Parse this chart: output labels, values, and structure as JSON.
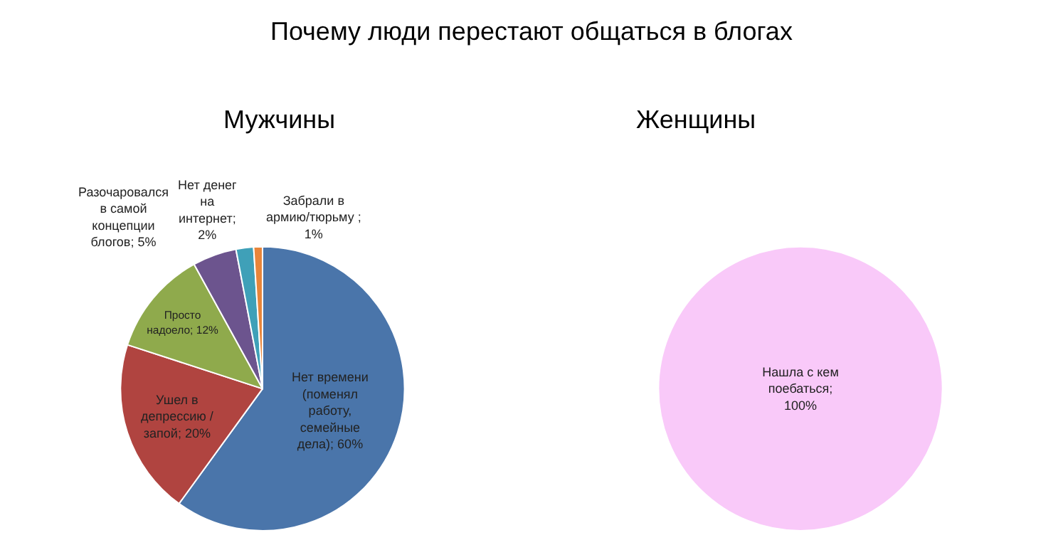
{
  "chart_data": [
    {
      "type": "pie",
      "title": "Мужчины",
      "annotations": [
        "Почему люди перестают общаться в блогах"
      ],
      "categories": [
        "Нет времени (поменял работу, семейные дела); 60%",
        "Ушел в депрессию / запой; 20%",
        "Просто надоело; 12%",
        "Разочаровался в самой концепции блогов; 5%",
        "Нет денег на интернет; 2%",
        "Забрали в армию/тюрьму ; 1%"
      ],
      "values": [
        60,
        20,
        12,
        5,
        2,
        1
      ],
      "colors": [
        "#4a75aa",
        "#b04440",
        "#8faa4c",
        "#6c548e",
        "#3fa0b8",
        "#e8853a"
      ],
      "legend": false
    },
    {
      "type": "pie",
      "title": "Женщины",
      "categories": [
        "Нашла с кем поебаться; 100%"
      ],
      "values": [
        100
      ],
      "colors": [
        "#f9c9f9"
      ],
      "legend": false
    }
  ]
}
